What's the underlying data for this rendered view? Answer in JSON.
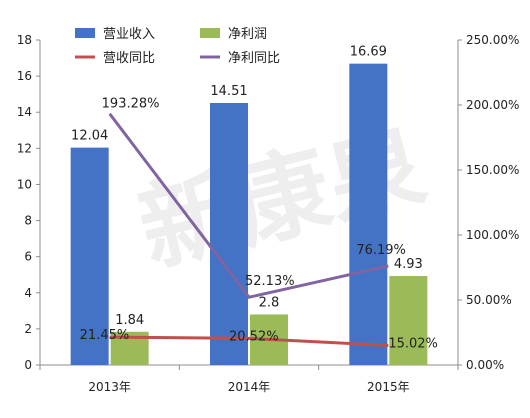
{
  "chart_data": {
    "type": "bar",
    "categories": [
      "2013年",
      "2014年",
      "2015年"
    ],
    "series": [
      {
        "name": "营业收入",
        "kind": "bar",
        "axis": "left",
        "color": "#4472C4",
        "values": [
          12.04,
          14.51,
          16.69
        ],
        "labels": [
          "12.04",
          "14.51",
          "16.69"
        ]
      },
      {
        "name": "净利润",
        "kind": "bar",
        "axis": "left",
        "color": "#9BBB59",
        "values": [
          1.84,
          2.8,
          4.93
        ],
        "labels": [
          "1.84",
          "2.8",
          "4.93"
        ]
      },
      {
        "name": "营收同比",
        "kind": "line",
        "axis": "right",
        "color": "#C0504D",
        "values": [
          21.45,
          20.52,
          15.02
        ],
        "labels": [
          "21.45%",
          "20.52%",
          "15.02%"
        ]
      },
      {
        "name": "净利同比",
        "kind": "line",
        "axis": "right",
        "color": "#8064A2",
        "values": [
          193.28,
          52.13,
          76.19
        ],
        "labels": [
          "193.28%",
          "52.13%",
          "76.19%"
        ]
      }
    ],
    "y_left": {
      "min": 0,
      "max": 18,
      "step": 2,
      "ticks": [
        "0",
        "2",
        "4",
        "6",
        "8",
        "10",
        "12",
        "14",
        "16",
        "18"
      ]
    },
    "y_right": {
      "min": 0,
      "max": 250,
      "step": 50,
      "ticks": [
        "0.00%",
        "50.00%",
        "100.00%",
        "150.00%",
        "200.00%",
        "250.00%"
      ]
    },
    "grid": false,
    "legend_position": "top-center"
  },
  "watermark": "新康泉"
}
